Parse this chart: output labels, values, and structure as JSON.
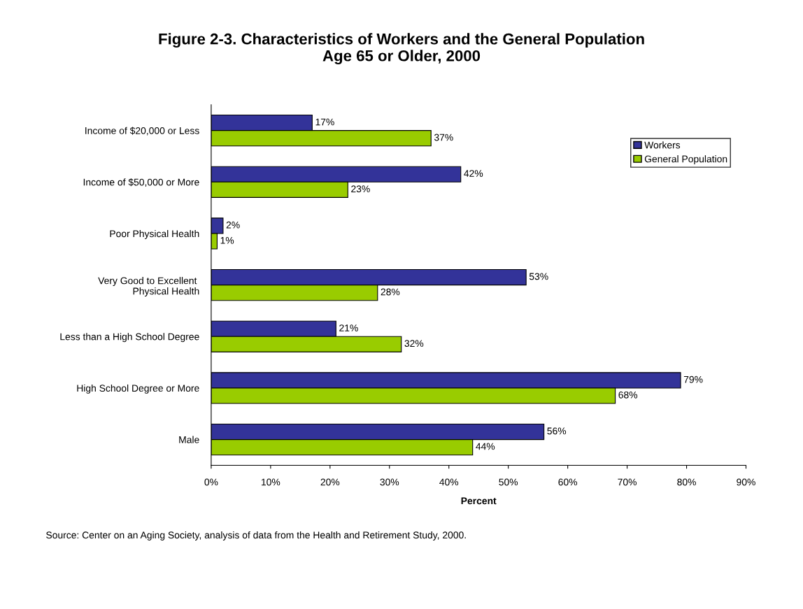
{
  "chart_data": {
    "type": "bar",
    "orientation": "horizontal",
    "title": "Figure 2-3. Characteristics of Workers and the General Population\nAge 65 or Older, 2000",
    "xlabel": "Percent",
    "categories": [
      "Income of $20,000 or Less",
      "Income of $50,000 or More",
      "Poor Physical Health",
      "Very Good to Excellent \nPhysical Health",
      "Less than a High School Degree",
      "High School Degree or More",
      "Male"
    ],
    "series": [
      {
        "name": "Workers",
        "color": "#333399",
        "values": [
          17,
          42,
          2,
          53,
          21,
          79,
          56
        ],
        "value_labels": [
          "17%",
          "42%",
          "2%",
          "53%",
          "21%",
          "79%",
          "56%"
        ]
      },
      {
        "name": "General Population",
        "color": "#99cc00",
        "values": [
          37,
          23,
          1,
          28,
          32,
          68,
          44
        ],
        "value_labels": [
          "37%",
          "23%",
          "1%",
          "28%",
          "32%",
          "68%",
          "44%"
        ]
      }
    ],
    "xlim": [
      0,
      90
    ],
    "xticks": [
      {
        "value": 0,
        "label": "0%"
      },
      {
        "value": 10,
        "label": "10%"
      },
      {
        "value": 20,
        "label": "20%"
      },
      {
        "value": 30,
        "label": "30%"
      },
      {
        "value": 40,
        "label": "40%"
      },
      {
        "value": 50,
        "label": "50%"
      },
      {
        "value": 60,
        "label": "60%"
      },
      {
        "value": 70,
        "label": "70%"
      },
      {
        "value": 80,
        "label": "80%"
      },
      {
        "value": 90,
        "label": "90%"
      }
    ],
    "legend": "top right",
    "grid": false,
    "annotations": [
      "Source: Center on an Aging Society, analysis of data from the Health and Retirement Study, 2000."
    ]
  }
}
